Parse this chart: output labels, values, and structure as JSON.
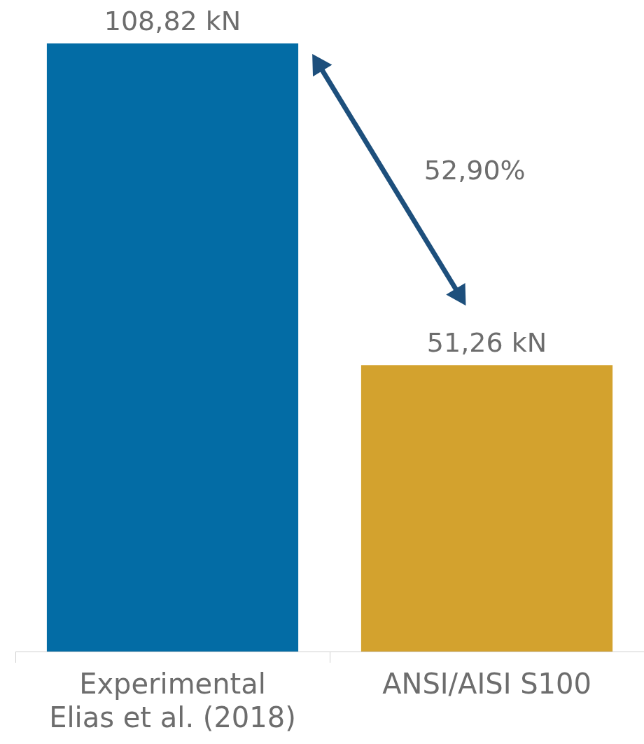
{
  "chart_data": {
    "type": "bar",
    "categories": [
      "Experimental\nElias et al. (2018)",
      "ANSI/AISI S100"
    ],
    "values": [
      108.82,
      51.26
    ],
    "colors": [
      "#036ca5",
      "#d3a22e"
    ],
    "value_labels": [
      "108,82 kN",
      "51,26 kN"
    ],
    "annotations": [
      "52,90%"
    ],
    "grid": false,
    "legend": false
  }
}
